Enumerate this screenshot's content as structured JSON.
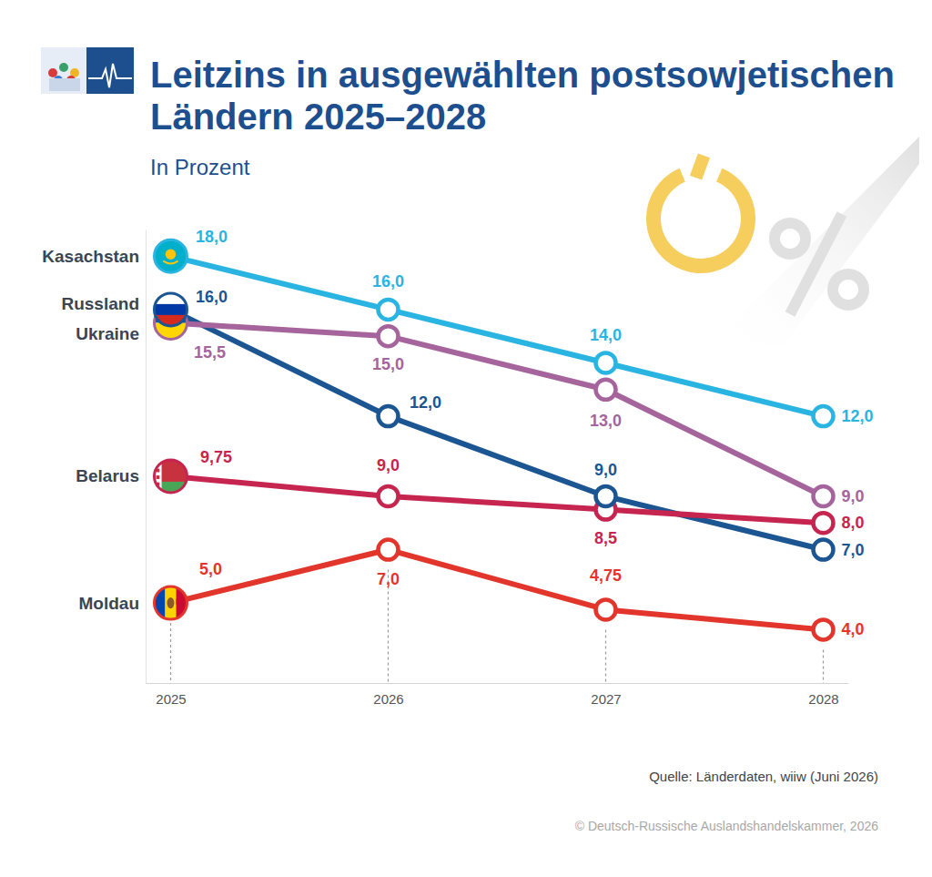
{
  "chart_data": {
    "type": "line",
    "title": "Leitzins in ausgewählten postsowjetischen Ländern 2025–2028",
    "subtitle": "In Prozent",
    "categories": [
      "2025",
      "2026",
      "2027",
      "2028"
    ],
    "series": [
      {
        "name": "Kasachstan",
        "color": "#2ab4e2",
        "values": [
          18,
          16,
          14,
          12
        ],
        "value_labels": [
          "18,0",
          "16,0",
          "14,0",
          "12,0"
        ]
      },
      {
        "name": "Russland",
        "color": "#1b5592",
        "values": [
          16,
          12,
          9,
          7
        ],
        "value_labels": [
          "16,0",
          "12,0",
          "9,0",
          "7,0"
        ]
      },
      {
        "name": "Ukraine",
        "color": "#a5649c",
        "values": [
          15.5,
          15,
          13,
          9
        ],
        "value_labels": [
          "15,5",
          "15,0",
          "13,0",
          "9,0"
        ]
      },
      {
        "name": "Belarus",
        "color": "#c5254f",
        "values": [
          9.75,
          9,
          8.5,
          8
        ],
        "value_labels": [
          "9,75",
          "9,0",
          "8,5",
          "8,0"
        ]
      },
      {
        "name": "Moldau",
        "color": "#e2352b",
        "values": [
          5,
          7,
          4.75,
          4
        ],
        "value_labels": [
          "5,0",
          "7,0",
          "4,75",
          "4,0"
        ]
      }
    ],
    "ylim": [
      2,
      19
    ],
    "yticks": [],
    "tick_labels": "x",
    "data_labels": true,
    "legend": "left",
    "source": "Quelle: Länderdaten, wiiw (Juni 2026)",
    "copyright": "© Deutsch-Russische Auslandshandelskammer, 2026"
  }
}
